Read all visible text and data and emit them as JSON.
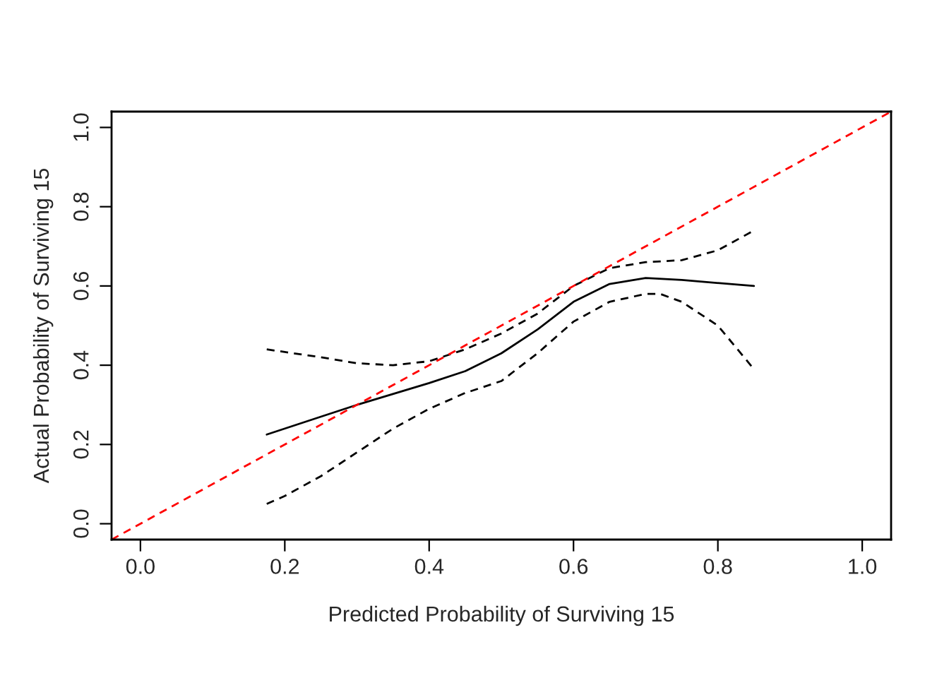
{
  "chart_data": {
    "type": "line",
    "xlabel": "Predicted Probability of Surviving 15",
    "ylabel": "Actual Probability of Surviving 15",
    "xlim": [
      -0.04,
      1.04
    ],
    "ylim": [
      -0.04,
      1.04
    ],
    "xticks": [
      {
        "value": 0,
        "label": "0.0"
      },
      {
        "value": 0.2,
        "label": "0.2"
      },
      {
        "value": 0.4,
        "label": "0.4"
      },
      {
        "value": 0.6,
        "label": "0.6"
      },
      {
        "value": 0.8,
        "label": "0.8"
      },
      {
        "value": 1,
        "label": "1.0"
      }
    ],
    "yticks": [
      {
        "value": 0,
        "label": "0.0"
      },
      {
        "value": 0.2,
        "label": "0.2"
      },
      {
        "value": 0.4,
        "label": "0.4"
      },
      {
        "value": 0.6,
        "label": "0.6"
      },
      {
        "value": 0.8,
        "label": "0.8"
      },
      {
        "value": 1,
        "label": "1.0"
      }
    ],
    "grid": false,
    "legend": false,
    "series": [
      {
        "color": "#000000",
        "line_style": "solid",
        "x": [
          0.175,
          0.25,
          0.3,
          0.4,
          0.45,
          0.5,
          0.55,
          0.6,
          0.65,
          0.7,
          0.75,
          0.85
        ],
        "values": [
          0.225,
          0.27,
          0.3,
          0.355,
          0.385,
          0.43,
          0.49,
          0.56,
          0.605,
          0.62,
          0.615,
          0.6
        ]
      },
      {
        "color": "#000000",
        "line_style": "dashed",
        "x": [
          0.175,
          0.25,
          0.3,
          0.35,
          0.4,
          0.45,
          0.5,
          0.55,
          0.6,
          0.65,
          0.7,
          0.75,
          0.8,
          0.85
        ],
        "values": [
          0.44,
          0.42,
          0.405,
          0.4,
          0.41,
          0.44,
          0.48,
          0.53,
          0.6,
          0.645,
          0.66,
          0.665,
          0.69,
          0.74
        ]
      },
      {
        "color": "#000000",
        "line_style": "dashed",
        "x": [
          0.175,
          0.2,
          0.25,
          0.3,
          0.35,
          0.4,
          0.45,
          0.5,
          0.55,
          0.6,
          0.65,
          0.7,
          0.72,
          0.75,
          0.8,
          0.85
        ],
        "values": [
          0.05,
          0.07,
          0.12,
          0.18,
          0.24,
          0.29,
          0.33,
          0.36,
          0.43,
          0.51,
          0.56,
          0.58,
          0.58,
          0.56,
          0.5,
          0.39
        ]
      },
      {
        "color": "#ff0000",
        "line_style": "dashed",
        "x": [
          -0.04,
          1.04
        ],
        "values": [
          -0.04,
          1.04
        ]
      }
    ]
  }
}
